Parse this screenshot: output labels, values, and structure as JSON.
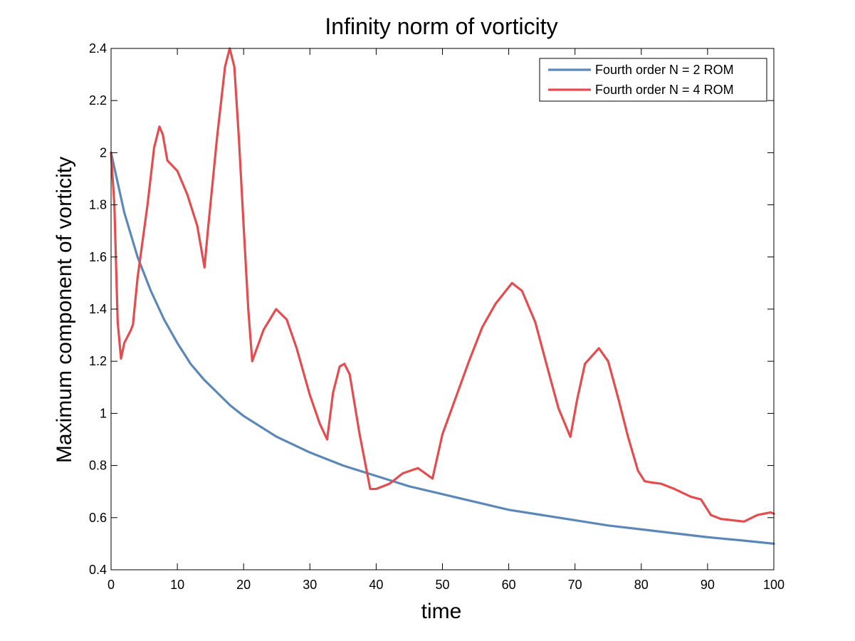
{
  "chart_data": {
    "type": "line",
    "title": "Infinity norm of vorticity",
    "xlabel": "time",
    "ylabel": "Maximum component of vorticity",
    "xlim": [
      0,
      100
    ],
    "ylim": [
      0.4,
      2.4
    ],
    "xticks": [
      0,
      10,
      20,
      30,
      40,
      50,
      60,
      70,
      80,
      90,
      100
    ],
    "yticks": [
      0.4,
      0.6,
      0.8,
      1,
      1.2,
      1.4,
      1.6,
      1.8,
      2,
      2.2,
      2.4
    ],
    "xtick_labels": [
      "0",
      "10",
      "20",
      "30",
      "40",
      "50",
      "60",
      "70",
      "80",
      "90",
      "100"
    ],
    "ytick_labels": [
      "0.4",
      "0.6",
      "0.8",
      "1",
      "1.2",
      "1.4",
      "1.6",
      "1.8",
      "2",
      "2.2",
      "2.4"
    ],
    "grid": false,
    "legend_position": "top-right",
    "series": [
      {
        "name": "Fourth order N = 2 ROM",
        "color": "#5b88b7",
        "x": [
          0,
          2,
          4,
          6,
          8,
          10,
          12,
          14,
          16,
          18,
          20,
          25,
          30,
          35,
          40,
          45,
          50,
          55,
          60,
          65,
          70,
          75,
          80,
          85,
          90,
          95,
          100
        ],
        "y": [
          2.0,
          1.77,
          1.6,
          1.47,
          1.36,
          1.27,
          1.19,
          1.13,
          1.08,
          1.03,
          0.99,
          0.91,
          0.85,
          0.8,
          0.76,
          0.72,
          0.69,
          0.66,
          0.63,
          0.61,
          0.59,
          0.57,
          0.555,
          0.54,
          0.525,
          0.513,
          0.5
        ]
      },
      {
        "name": "Fourth order N = 4 ROM",
        "color": "#e44d4f",
        "x": [
          0,
          0.5,
          1.0,
          1.5,
          2.0,
          3.0,
          3.3,
          4.0,
          5.5,
          6.5,
          7.3,
          7.8,
          8.5,
          10,
          11.5,
          13,
          14.1,
          14.6,
          16,
          17.2,
          17.9,
          18.6,
          19.3,
          20,
          20.7,
          21.3,
          23,
          24.9,
          26.5,
          28,
          30,
          31.5,
          32.6,
          33.5,
          34.5,
          35.2,
          36,
          37.5,
          39.1,
          40,
          42,
          44,
          46.3,
          48.5,
          50,
          52,
          54,
          56,
          58,
          60.5,
          62,
          64,
          66,
          67.5,
          69.3,
          70.3,
          71.5,
          73.6,
          75,
          76.5,
          78,
          79.5,
          80.5,
          81.5,
          83,
          85,
          87.5,
          89,
          90.5,
          92,
          95.5,
          97.5,
          99.5,
          100
        ],
        "y": [
          2.0,
          1.8,
          1.35,
          1.21,
          1.27,
          1.32,
          1.34,
          1.52,
          1.8,
          2.02,
          2.1,
          2.07,
          1.97,
          1.93,
          1.84,
          1.72,
          1.56,
          1.7,
          2.06,
          2.33,
          2.4,
          2.33,
          2.05,
          1.72,
          1.4,
          1.2,
          1.32,
          1.4,
          1.36,
          1.25,
          1.07,
          0.96,
          0.9,
          1.08,
          1.18,
          1.19,
          1.15,
          0.92,
          0.71,
          0.71,
          0.73,
          0.77,
          0.79,
          0.75,
          0.92,
          1.06,
          1.2,
          1.33,
          1.42,
          1.5,
          1.47,
          1.35,
          1.16,
          1.02,
          0.91,
          1.05,
          1.19,
          1.25,
          1.2,
          1.06,
          0.91,
          0.78,
          0.74,
          0.735,
          0.73,
          0.71,
          0.68,
          0.67,
          0.61,
          0.595,
          0.585,
          0.61,
          0.62,
          0.615
        ]
      }
    ]
  }
}
